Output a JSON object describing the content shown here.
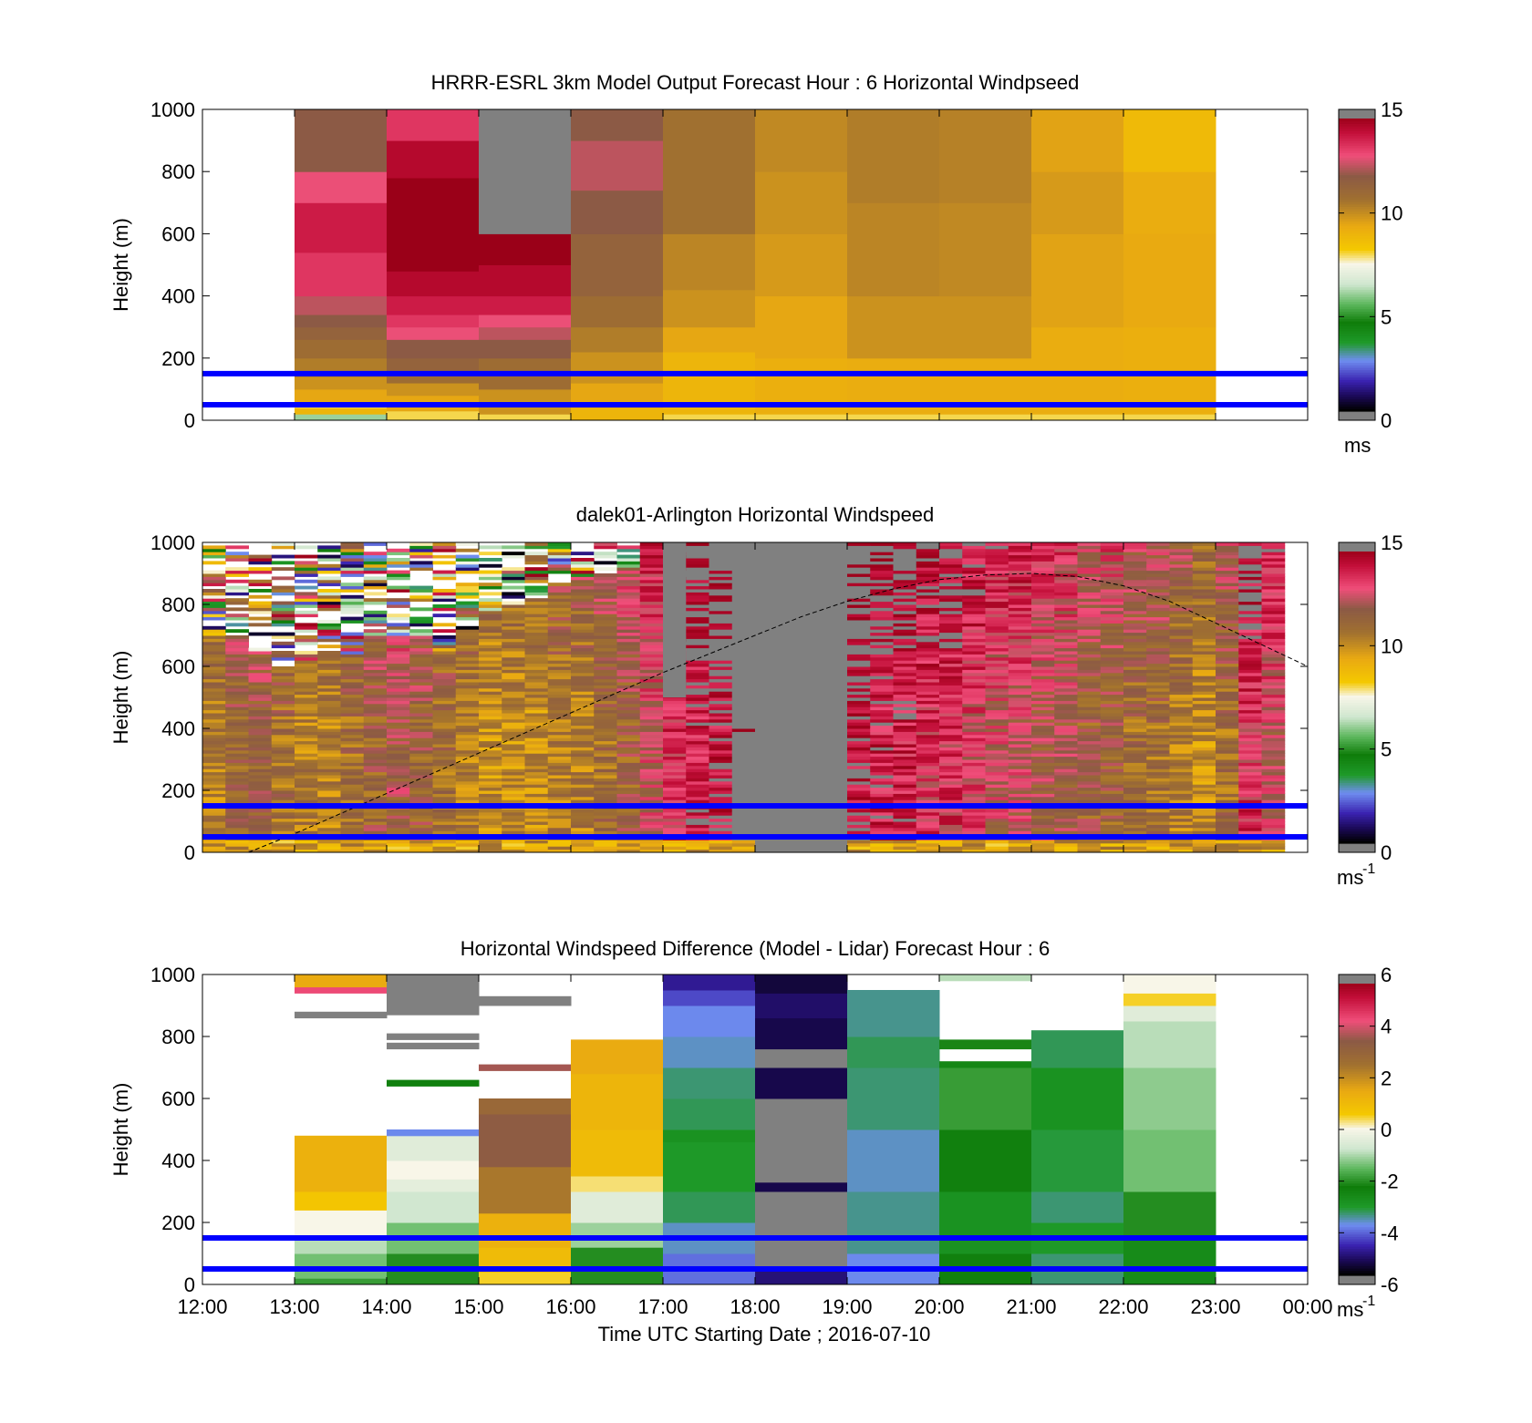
{
  "chart_data": [
    {
      "type": "heatmap",
      "title": "HRRR-ESRL 3km Model Output   Forecast Hour : 6 Horizontal Windpseed",
      "ylabel": "Height (m)",
      "ylim": [
        0,
        1000
      ],
      "yticks": [
        "0",
        "200",
        "400",
        "600",
        "800",
        "1000"
      ],
      "xlim_hours": [
        12,
        24
      ],
      "cell_x_hours": [
        13,
        14,
        15,
        16,
        17,
        18,
        19,
        20,
        21,
        22
      ],
      "cell_width_hours": 1,
      "colorbar": {
        "min": 0,
        "max": 15,
        "ticks": [
          "0",
          "5",
          "10",
          "15"
        ],
        "unit_base": "ms",
        "unit_exp": ""
      },
      "hlines_m": [
        50,
        150
      ],
      "columns": [
        [
          [
            0,
            20,
            6
          ],
          [
            20,
            40,
            9
          ],
          [
            40,
            60,
            8
          ],
          [
            60,
            100,
            9.5
          ],
          [
            100,
            140,
            10
          ],
          [
            140,
            200,
            10.5
          ],
          [
            200,
            260,
            11
          ],
          [
            260,
            300,
            11.5
          ],
          [
            300,
            340,
            12
          ],
          [
            340,
            400,
            12.5
          ],
          [
            400,
            540,
            13.5
          ],
          [
            540,
            700,
            14
          ],
          [
            700,
            800,
            13
          ],
          [
            800,
            1000,
            12
          ]
        ],
        [
          [
            0,
            30,
            8
          ],
          [
            30,
            80,
            9.5
          ],
          [
            80,
            120,
            10
          ],
          [
            120,
            160,
            11
          ],
          [
            160,
            200,
            11.5
          ],
          [
            200,
            260,
            12
          ],
          [
            260,
            300,
            13
          ],
          [
            300,
            340,
            13.5
          ],
          [
            340,
            400,
            14
          ],
          [
            400,
            480,
            14.5
          ],
          [
            480,
            600,
            15
          ],
          [
            600,
            780,
            15
          ],
          [
            780,
            900,
            14.5
          ],
          [
            900,
            1000,
            13.5
          ]
        ],
        [
          [
            0,
            20,
            8
          ],
          [
            20,
            100,
            10
          ],
          [
            100,
            200,
            11
          ],
          [
            200,
            260,
            12
          ],
          [
            260,
            300,
            12.5
          ],
          [
            300,
            340,
            13
          ],
          [
            340,
            400,
            14
          ],
          [
            400,
            500,
            14.5
          ],
          [
            500,
            600,
            15
          ],
          [
            600,
            1000,
            16
          ]
        ],
        [
          [
            0,
            40,
            9
          ],
          [
            40,
            120,
            9.5
          ],
          [
            120,
            220,
            10
          ],
          [
            220,
            300,
            10.5
          ],
          [
            300,
            400,
            11
          ],
          [
            400,
            600,
            11.5
          ],
          [
            600,
            740,
            12
          ],
          [
            740,
            900,
            12.5
          ],
          [
            900,
            1000,
            12
          ]
        ],
        [
          [
            0,
            20,
            8
          ],
          [
            20,
            220,
            9
          ],
          [
            220,
            300,
            9.5
          ],
          [
            300,
            420,
            10
          ],
          [
            420,
            600,
            10.3
          ],
          [
            600,
            1000,
            10.8
          ]
        ],
        [
          [
            0,
            20,
            8
          ],
          [
            20,
            200,
            9.2
          ],
          [
            200,
            400,
            9.5
          ],
          [
            400,
            600,
            9.8
          ],
          [
            600,
            800,
            10
          ],
          [
            800,
            1000,
            10.2
          ]
        ],
        [
          [
            0,
            20,
            8
          ],
          [
            20,
            200,
            9.3
          ],
          [
            200,
            400,
            10
          ],
          [
            400,
            700,
            10.3
          ],
          [
            700,
            1000,
            10.5
          ]
        ],
        [
          [
            0,
            20,
            8
          ],
          [
            20,
            200,
            9.3
          ],
          [
            200,
            400,
            10
          ],
          [
            400,
            700,
            10.2
          ],
          [
            700,
            1000,
            10.4
          ]
        ],
        [
          [
            0,
            20,
            8
          ],
          [
            20,
            300,
            9.3
          ],
          [
            300,
            600,
            9.6
          ],
          [
            600,
            800,
            9.8
          ],
          [
            800,
            1000,
            9.6
          ]
        ],
        [
          [
            0,
            20,
            8
          ],
          [
            20,
            300,
            9.2
          ],
          [
            300,
            600,
            9.4
          ],
          [
            600,
            800,
            9.3
          ],
          [
            800,
            1000,
            8.8
          ]
        ]
      ]
    },
    {
      "type": "heatmap",
      "title": "dalek01-Arlington  Horizontal Windspeed",
      "ylabel": "Height (m)",
      "ylim": [
        0,
        1000
      ],
      "yticks": [
        "0",
        "200",
        "400",
        "600",
        "800",
        "1000"
      ],
      "xlim_hours": [
        12,
        24
      ],
      "colorbar": {
        "min": 0,
        "max": 15,
        "ticks": [
          "0",
          "5",
          "10",
          "15"
        ],
        "unit_base": "ms",
        "unit_exp": "-1"
      },
      "hlines_m": [
        50,
        150
      ],
      "profile_columns": 47,
      "profile_start_hours": 12,
      "profile_step_hours": 0.25,
      "ceiling_m": [
        700,
        700,
        650,
        600,
        620,
        650,
        640,
        700,
        700,
        700,
        650,
        720,
        760,
        800,
        820,
        860,
        880,
        900,
        920,
        1000,
        1000,
        1000,
        1000,
        1000,
        1000,
        1000,
        1000,
        1000,
        1000,
        1000,
        1000,
        1000,
        1000,
        1000,
        1000,
        1000,
        1000,
        1000,
        1000,
        1000,
        1000,
        1000,
        1000,
        1000,
        1000,
        1000,
        1000
      ],
      "column_speed_ms": [
        10.5,
        11.5,
        11.5,
        11,
        10.5,
        10.5,
        11,
        11.5,
        12,
        11.5,
        11,
        10.5,
        10,
        10,
        10,
        10.5,
        10.5,
        11,
        11.5,
        12.5,
        13.5,
        14,
        14.5,
        16,
        16,
        16,
        16,
        14.5,
        14.5,
        14,
        14,
        13.5,
        13.5,
        13,
        12.5,
        12.5,
        12,
        12,
        11.5,
        11.5,
        11,
        11,
        10.5,
        10,
        11,
        13.5,
        12.5
      ],
      "missing_blocks": [
        {
          "x_hours": [
            17.0,
            17.25
          ],
          "height_m": [
            500,
            1000
          ]
        },
        {
          "x_hours": [
            18.0,
            19.0
          ],
          "height_m": [
            0,
            1000
          ]
        }
      ],
      "curve_x_hours": [
        12.5,
        13,
        13.5,
        14,
        14.5,
        15,
        15.5,
        16,
        16.5,
        17,
        17.5,
        18,
        18.5,
        19,
        19.5,
        20,
        20.5,
        21,
        21.5,
        22,
        22.5,
        23,
        23.5,
        24
      ],
      "curve_y_m": [
        0,
        60,
        125,
        190,
        255,
        320,
        385,
        450,
        515,
        580,
        640,
        700,
        760,
        810,
        850,
        880,
        895,
        900,
        890,
        860,
        810,
        740,
        670,
        600
      ]
    },
    {
      "type": "heatmap",
      "title": "Horizontal Windspeed Difference (Model - Lidar) Forecast Hour : 6",
      "ylabel": "Height (m)",
      "xlabel": "Time UTC  Starting Date ; 2016-07-10",
      "ylim": [
        0,
        1000
      ],
      "yticks": [
        "0",
        "200",
        "400",
        "600",
        "800",
        "1000"
      ],
      "xlim_hours": [
        12,
        24
      ],
      "xticks": [
        "12:00",
        "13:00",
        "14:00",
        "15:00",
        "16:00",
        "17:00",
        "18:00",
        "19:00",
        "20:00",
        "21:00",
        "22:00",
        "23:00",
        "00:00"
      ],
      "cell_x_hours": [
        13,
        14,
        15,
        16,
        17,
        18,
        19,
        20,
        21,
        22
      ],
      "cell_width_hours": 1,
      "colorbar": {
        "min": -6,
        "max": 6,
        "ticks": [
          "-6",
          "-4",
          "-2",
          "0",
          "2",
          "4",
          "6"
        ],
        "unit_base": "ms",
        "unit_exp": "-1"
      },
      "hlines_m": [
        50,
        150
      ],
      "columns": [
        [
          [
            0,
            20,
            -2
          ],
          [
            20,
            100,
            -1.5
          ],
          [
            100,
            160,
            -1
          ],
          [
            160,
            240,
            0
          ],
          [
            240,
            300,
            0.7
          ],
          [
            300,
            480,
            1.3
          ],
          [
            860,
            880,
            7
          ],
          [
            940,
            960,
            4.5
          ],
          [
            960,
            1000,
            1.5
          ]
        ],
        [
          [
            0,
            100,
            -2.2
          ],
          [
            100,
            200,
            -1.5
          ],
          [
            200,
            300,
            -0.8
          ],
          [
            300,
            340,
            -0.4
          ],
          [
            340,
            400,
            0
          ],
          [
            400,
            480,
            -0.5
          ],
          [
            480,
            500,
            -4
          ],
          [
            640,
            660,
            -2.5
          ],
          [
            760,
            780,
            7
          ],
          [
            790,
            810,
            7
          ],
          [
            870,
            1000,
            7
          ]
        ],
        [
          [
            0,
            40,
            0.5
          ],
          [
            40,
            120,
            1
          ],
          [
            120,
            230,
            1.3
          ],
          [
            230,
            380,
            2.5
          ],
          [
            380,
            550,
            3.5
          ],
          [
            550,
            600,
            3
          ],
          [
            690,
            710,
            3.8
          ],
          [
            900,
            930,
            7
          ]
        ],
        [
          [
            0,
            120,
            -2.2
          ],
          [
            120,
            200,
            -1.2
          ],
          [
            200,
            300,
            -0.5
          ],
          [
            300,
            350,
            0.3
          ],
          [
            350,
            500,
            1
          ],
          [
            500,
            680,
            1.2
          ],
          [
            680,
            790,
            1.5
          ]
        ],
        [
          [
            0,
            100,
            -4.2
          ],
          [
            100,
            200,
            -3.8
          ],
          [
            200,
            300,
            -3.4
          ],
          [
            300,
            460,
            -3.2
          ],
          [
            460,
            500,
            -3
          ],
          [
            500,
            600,
            -3.4
          ],
          [
            600,
            700,
            -3.5
          ],
          [
            700,
            800,
            -3.8
          ],
          [
            800,
            900,
            -4
          ],
          [
            900,
            950,
            -4.5
          ],
          [
            950,
            1000,
            -5
          ]
        ],
        [
          [
            0,
            60,
            -5.2
          ],
          [
            60,
            300,
            7
          ],
          [
            300,
            330,
            -5.5
          ],
          [
            330,
            600,
            7
          ],
          [
            600,
            700,
            -5.5
          ],
          [
            700,
            760,
            7
          ],
          [
            760,
            860,
            -5.5
          ],
          [
            860,
            940,
            -5.3
          ],
          [
            940,
            1000,
            -5.6
          ]
        ],
        [
          [
            0,
            100,
            -4
          ],
          [
            100,
            300,
            -3.6
          ],
          [
            300,
            500,
            -3.8
          ],
          [
            500,
            700,
            -3.5
          ],
          [
            700,
            800,
            -3.4
          ],
          [
            800,
            950,
            -3.6
          ]
        ],
        [
          [
            0,
            100,
            -2.5
          ],
          [
            100,
            300,
            -3
          ],
          [
            300,
            500,
            -2.5
          ],
          [
            500,
            700,
            -2
          ],
          [
            700,
            720,
            -2.7
          ],
          [
            760,
            790,
            -2.3
          ],
          [
            980,
            1000,
            -1
          ]
        ],
        [
          [
            0,
            100,
            -3.5
          ],
          [
            100,
            200,
            -3.2
          ],
          [
            200,
            300,
            -3.5
          ],
          [
            300,
            500,
            -3.3
          ],
          [
            500,
            700,
            -3
          ],
          [
            700,
            820,
            -3.4
          ]
        ],
        [
          [
            0,
            150,
            -2.8
          ],
          [
            150,
            300,
            -2.2
          ],
          [
            300,
            500,
            -1.5
          ],
          [
            500,
            700,
            -1.3
          ],
          [
            700,
            850,
            -1
          ],
          [
            850,
            900,
            -0.5
          ],
          [
            900,
            940,
            0.5
          ],
          [
            940,
            1000,
            0
          ]
        ]
      ]
    }
  ]
}
